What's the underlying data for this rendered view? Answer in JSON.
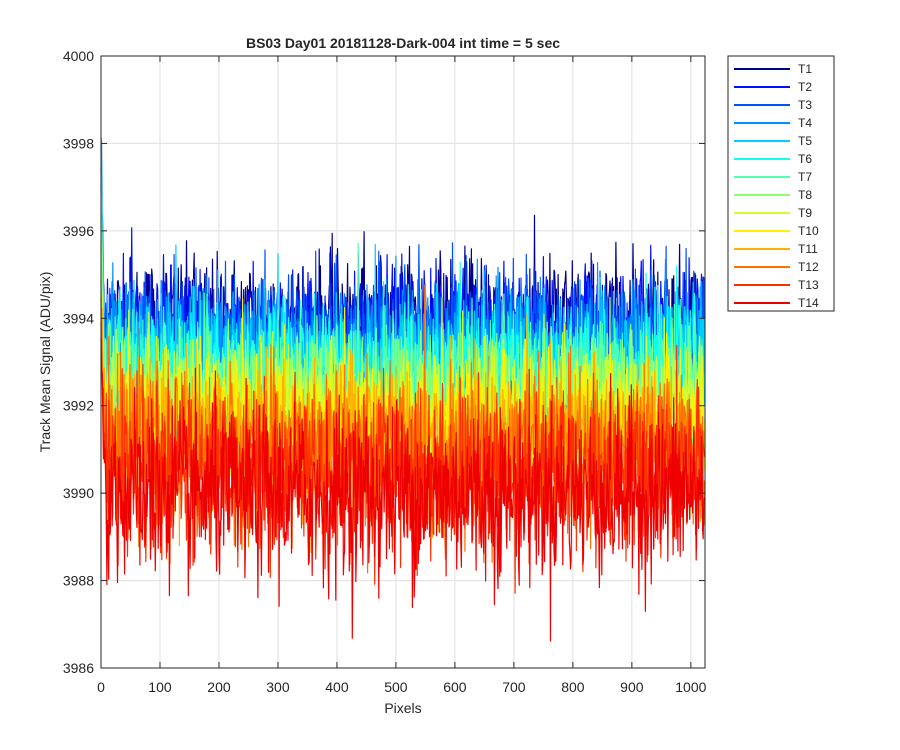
{
  "chart_data": {
    "type": "line",
    "title": "BS03 Day01 20181128-Dark-004 int time = 5 sec",
    "xlabel": "Pixels",
    "ylabel": "Track Mean Signal (ADU/pix)",
    "xlim": [
      0,
      1024
    ],
    "ylim": [
      3986,
      4000
    ],
    "xticks": [
      0,
      100,
      200,
      300,
      400,
      500,
      600,
      700,
      800,
      900,
      1000
    ],
    "yticks": [
      3986,
      3988,
      3990,
      3992,
      3994,
      3996,
      3998,
      4000
    ],
    "grid": true,
    "legend_position": "outside-top-right",
    "x_points": 1024,
    "series": [
      {
        "name": "T1",
        "color": "#00008f",
        "mean": 3993.9,
        "noise_sd": 0.75,
        "start_value": 3996.2
      },
      {
        "name": "T2",
        "color": "#0010ff",
        "mean": 3993.7,
        "noise_sd": 0.75,
        "start_value": 3996.8
      },
      {
        "name": "T3",
        "color": "#0050ff",
        "mean": 3993.5,
        "noise_sd": 0.75,
        "start_value": 3997.1
      },
      {
        "name": "T4",
        "color": "#0090ff",
        "mean": 3993.3,
        "noise_sd": 0.75,
        "start_value": 3998.1
      },
      {
        "name": "T5",
        "color": "#00d0ff",
        "mean": 3993.0,
        "noise_sd": 0.75,
        "start_value": 3997.3
      },
      {
        "name": "T6",
        "color": "#10ffef",
        "mean": 3992.8,
        "noise_sd": 0.75,
        "start_value": 3996.9
      },
      {
        "name": "T7",
        "color": "#50ffaf",
        "mean": 3992.5,
        "noise_sd": 0.75,
        "start_value": 3996.5
      },
      {
        "name": "T8",
        "color": "#90ff6f",
        "mean": 3992.2,
        "noise_sd": 0.75,
        "start_value": 3996.0
      },
      {
        "name": "T9",
        "color": "#cfff30",
        "mean": 3991.9,
        "noise_sd": 0.8,
        "start_value": 3995.6
      },
      {
        "name": "T10",
        "color": "#ffef00",
        "mean": 3991.6,
        "noise_sd": 0.8,
        "start_value": 3995.1
      },
      {
        "name": "T11",
        "color": "#ffb000",
        "mean": 3991.3,
        "noise_sd": 0.85,
        "start_value": 3994.8
      },
      {
        "name": "T12",
        "color": "#ff7000",
        "mean": 3990.9,
        "noise_sd": 0.9,
        "start_value": 3994.2
      },
      {
        "name": "T13",
        "color": "#ff3000",
        "mean": 3990.5,
        "noise_sd": 0.95,
        "start_value": 3993.9
      },
      {
        "name": "T14",
        "color": "#ef0000",
        "mean": 3990.0,
        "noise_sd": 1.0,
        "start_value": 3993.7
      }
    ]
  }
}
